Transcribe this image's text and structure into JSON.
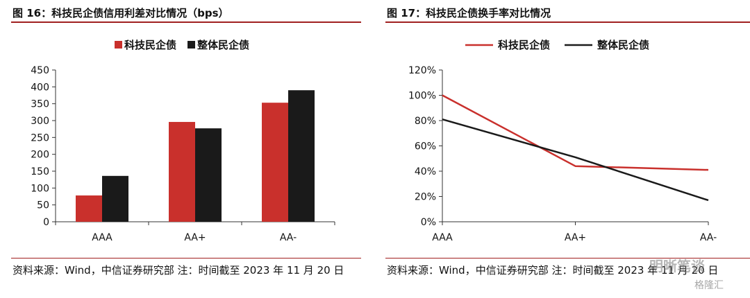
{
  "figures": [
    {
      "title": "图 16：科技民企债信用利差对比情况（bps）",
      "source": "资料来源：Wind，中信证券研究部 注：时间截至 2023 年 11 月 20 日"
    },
    {
      "title": "图 17：科技民企债换手率对比情况",
      "source": "资料来源：Wind，中信证券研究部 注：时间截至 2023 年 11 月 20 日"
    }
  ],
  "watermark": {
    "name": "明晰笔谈",
    "small": "格隆汇"
  },
  "colors": {
    "red": "#c9302c",
    "black": "#1a1a1a",
    "accent_rule": "#a01f1f"
  },
  "chart_data": [
    {
      "type": "bar",
      "categories": [
        "AAA",
        "AA+",
        "AA-"
      ],
      "series": [
        {
          "name": "科技民企债",
          "values": [
            78,
            296,
            353
          ],
          "color": "#c9302c"
        },
        {
          "name": "整体民企债",
          "values": [
            136,
            277,
            390
          ],
          "color": "#1a1a1a"
        }
      ],
      "ylim": [
        0,
        450
      ],
      "yticks": [
        "0",
        "50",
        "100",
        "150",
        "200",
        "250",
        "300",
        "350",
        "400",
        "450"
      ],
      "legend": "top",
      "grid": false
    },
    {
      "type": "line",
      "categories": [
        "AAA",
        "AA+",
        "AA-"
      ],
      "series": [
        {
          "name": "科技民企债",
          "values": [
            100,
            44,
            41
          ],
          "color": "#c9302c"
        },
        {
          "name": "整体民企债",
          "values": [
            81,
            51,
            17
          ],
          "color": "#1a1a1a"
        }
      ],
      "ylim": [
        0,
        120
      ],
      "yticks": [
        "0%",
        "20%",
        "40%",
        "60%",
        "80%",
        "100%",
        "120%"
      ],
      "legend": "top",
      "grid": false
    }
  ]
}
